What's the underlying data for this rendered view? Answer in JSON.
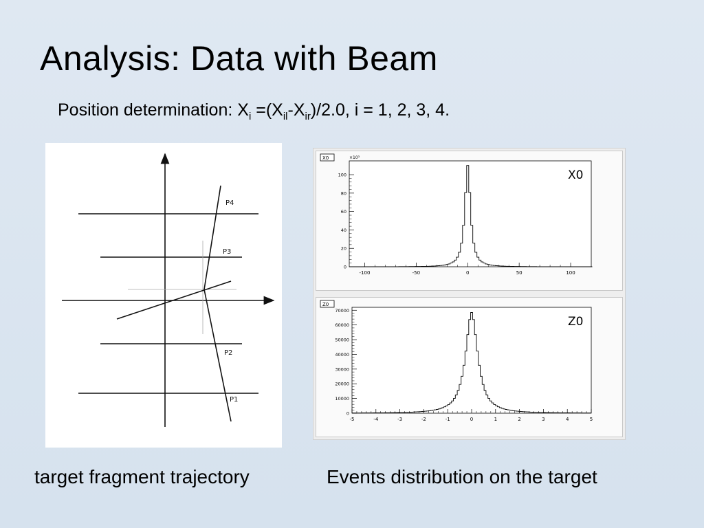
{
  "slide": {
    "title": "Analysis: Data with Beam",
    "subtitle": {
      "prefix": "Position determination: X",
      "sub_i": "i",
      "eq": " =(X",
      "sub_il": "il",
      "minus": "-X",
      "sub_ir": "ir",
      "suffix": ")/2.0,  i = 1, 2, 3, 4."
    },
    "caption_left": "target fragment trajectory",
    "caption_right": "Events distribution on the target"
  },
  "diagram": {
    "plane_labels": [
      "P1",
      "P2",
      "P3",
      "P4"
    ]
  },
  "histograms": [
    {
      "tag": "X0",
      "label": "X0",
      "exponent": "×10³",
      "xlim": [
        -115,
        120
      ],
      "ylim": [
        0,
        115
      ],
      "xticks": [
        "-100",
        "-50",
        "0",
        "50",
        "100"
      ],
      "xtick_values": [
        -100,
        -50,
        0,
        50,
        100
      ],
      "yticks": [
        "0",
        "20",
        "40",
        "60",
        "80",
        "100"
      ],
      "ytick_values": [
        0,
        20,
        40,
        60,
        80,
        100
      ],
      "peak": 110,
      "center": 0,
      "width": 3.5,
      "bin": 2
    },
    {
      "tag": "Z0",
      "label": "Z0",
      "exponent": "",
      "xlim": [
        -5,
        5
      ],
      "ylim": [
        0,
        72000
      ],
      "xticks": [
        "-5",
        "-4",
        "-3",
        "-2",
        "-1",
        "0",
        "1",
        "2",
        "3",
        "4",
        "5"
      ],
      "xtick_values": [
        -5,
        -4,
        -3,
        -2,
        -1,
        0,
        1,
        2,
        3,
        4,
        5
      ],
      "yticks": [
        "0",
        "10000",
        "20000",
        "30000",
        "40000",
        "50000",
        "60000",
        "70000"
      ],
      "ytick_values": [
        0,
        10000,
        20000,
        30000,
        40000,
        50000,
        60000,
        70000
      ],
      "peak": 68500,
      "center": 0,
      "width": 0.32,
      "bin": 0.08
    }
  ]
}
